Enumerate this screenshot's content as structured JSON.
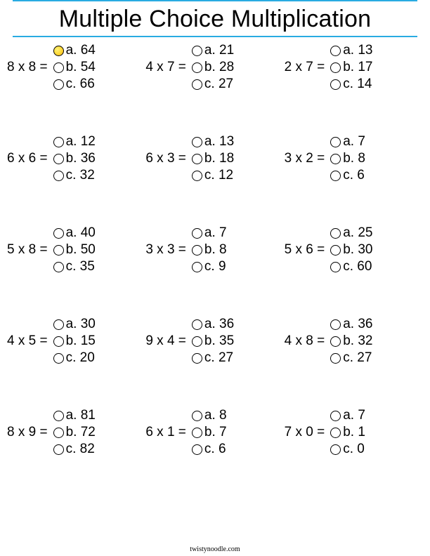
{
  "title": "Multiple Choice Multiplication",
  "rule_color": "#29abe2",
  "footer": "twistynoodle.com",
  "bubble_fill_color": "#fdd835",
  "problems": [
    [
      {
        "q": "8 x 8 =",
        "choices": [
          {
            "l": "a. 64",
            "s": true
          },
          {
            "l": "b. 54",
            "s": false
          },
          {
            "l": "c. 66",
            "s": false
          }
        ]
      },
      {
        "q": "4 x 7 =",
        "choices": [
          {
            "l": "a. 21",
            "s": false
          },
          {
            "l": "b. 28",
            "s": false
          },
          {
            "l": "c. 27",
            "s": false
          }
        ]
      },
      {
        "q": "2 x 7 =",
        "choices": [
          {
            "l": "a. 13",
            "s": false
          },
          {
            "l": "b. 17",
            "s": false
          },
          {
            "l": "c. 14",
            "s": false
          }
        ]
      }
    ],
    [
      {
        "q": "6 x 6 =",
        "choices": [
          {
            "l": "a. 12",
            "s": false
          },
          {
            "l": "b. 36",
            "s": false
          },
          {
            "l": "c. 32",
            "s": false
          }
        ]
      },
      {
        "q": "6 x 3 =",
        "choices": [
          {
            "l": "a. 13",
            "s": false
          },
          {
            "l": "b. 18",
            "s": false
          },
          {
            "l": "c. 12",
            "s": false
          }
        ]
      },
      {
        "q": "3 x 2 =",
        "choices": [
          {
            "l": "a. 7",
            "s": false
          },
          {
            "l": "b. 8",
            "s": false
          },
          {
            "l": "c. 6",
            "s": false
          }
        ]
      }
    ],
    [
      {
        "q": "5 x 8 =",
        "choices": [
          {
            "l": "a. 40",
            "s": false
          },
          {
            "l": "b. 50",
            "s": false
          },
          {
            "l": "c. 35",
            "s": false
          }
        ]
      },
      {
        "q": "3 x 3 =",
        "choices": [
          {
            "l": "a. 7",
            "s": false
          },
          {
            "l": "b. 8",
            "s": false
          },
          {
            "l": "c. 9",
            "s": false
          }
        ]
      },
      {
        "q": "5 x 6 =",
        "choices": [
          {
            "l": "a. 25",
            "s": false
          },
          {
            "l": "b. 30",
            "s": false
          },
          {
            "l": "c. 60",
            "s": false
          }
        ]
      }
    ],
    [
      {
        "q": "4 x 5 =",
        "choices": [
          {
            "l": "a. 30",
            "s": false
          },
          {
            "l": "b. 15",
            "s": false
          },
          {
            "l": "c. 20",
            "s": false
          }
        ]
      },
      {
        "q": "9 x 4 =",
        "choices": [
          {
            "l": "a. 36",
            "s": false
          },
          {
            "l": "b. 35",
            "s": false
          },
          {
            "l": "c. 27",
            "s": false
          }
        ]
      },
      {
        "q": "4 x 8 =",
        "choices": [
          {
            "l": "a. 36",
            "s": false
          },
          {
            "l": "b. 32",
            "s": false
          },
          {
            "l": "c. 27",
            "s": false
          }
        ]
      }
    ],
    [
      {
        "q": "8 x 9 =",
        "choices": [
          {
            "l": "a. 81",
            "s": false
          },
          {
            "l": "b. 72",
            "s": false
          },
          {
            "l": "c. 82",
            "s": false
          }
        ]
      },
      {
        "q": "6 x 1 =",
        "choices": [
          {
            "l": "a. 8",
            "s": false
          },
          {
            "l": "b. 7",
            "s": false
          },
          {
            "l": "c. 6",
            "s": false
          }
        ]
      },
      {
        "q": "7 x 0 =",
        "choices": [
          {
            "l": "a. 7",
            "s": false
          },
          {
            "l": "b. 1",
            "s": false
          },
          {
            "l": "c. 0",
            "s": false
          }
        ]
      }
    ]
  ]
}
